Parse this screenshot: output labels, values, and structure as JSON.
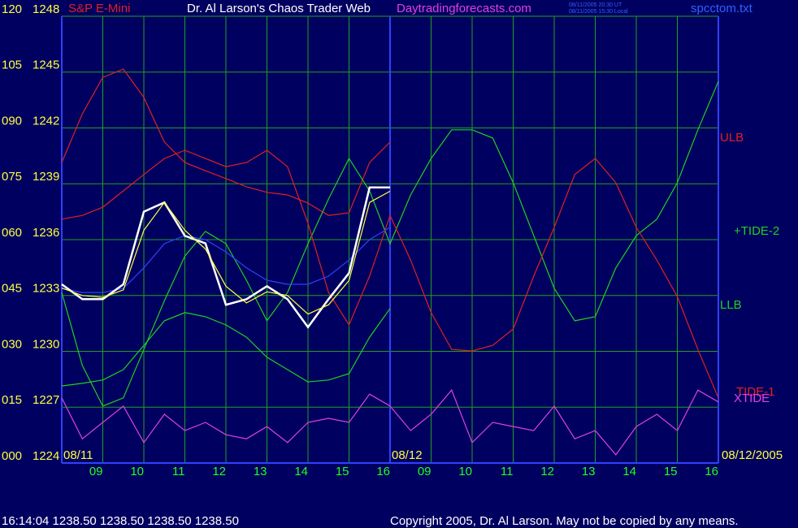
{
  "chart_data": {
    "type": "line",
    "title": "Dr. Al Larson's Chaos Trader Web",
    "site": "Daytradingforecasts.com",
    "instrument": "S&P E-Mini",
    "file": "spcctom.txt",
    "stamp_ut": "08/11/2005 20:30 UT",
    "stamp_local": "08/11/2005 15:30 Local",
    "dates": [
      "08/11",
      "08/12",
      "08/12/2005"
    ],
    "footer_quote": "16:14:04  1238.50 1238.50 1238.50 1238.50",
    "copyright": "Copyright 2005, Dr. Al Larson. May not be copied by any means.",
    "grid": true,
    "x": [
      0,
      0.5,
      1,
      1.5,
      2,
      2.5,
      3,
      3.5,
      4,
      4.5,
      5,
      5.5,
      6,
      6.5,
      7,
      7.5,
      8,
      8.5,
      9,
      9.5,
      10,
      10.5,
      11,
      11.5,
      12,
      12.5,
      13,
      13.5,
      14,
      14.5,
      15,
      15.5,
      16
    ],
    "xlim": [
      0,
      16
    ],
    "xticks": [
      {
        "value": 1,
        "label": "09"
      },
      {
        "value": 2,
        "label": "10"
      },
      {
        "value": 3,
        "label": "11"
      },
      {
        "value": 4,
        "label": "12"
      },
      {
        "value": 5,
        "label": "13"
      },
      {
        "value": 6,
        "label": "14"
      },
      {
        "value": 7,
        "label": "15"
      },
      {
        "value": 8,
        "label": "16"
      },
      {
        "value": 9,
        "label": "09"
      },
      {
        "value": 10,
        "label": "10"
      },
      {
        "value": 11,
        "label": "11"
      },
      {
        "value": 12,
        "label": "12"
      },
      {
        "value": 13,
        "label": "13"
      },
      {
        "value": 14,
        "label": "14"
      },
      {
        "value": 15,
        "label": "15"
      },
      {
        "value": 16,
        "label": "16"
      }
    ],
    "ylim": [
      0,
      120
    ],
    "yticks": [
      {
        "value": 0,
        "label": "000"
      },
      {
        "value": 15,
        "label": "015"
      },
      {
        "value": 30,
        "label": "030"
      },
      {
        "value": 45,
        "label": "045"
      },
      {
        "value": 60,
        "label": "060"
      },
      {
        "value": 75,
        "label": "075"
      },
      {
        "value": 90,
        "label": "090"
      },
      105,
      120
    ],
    "y2lim": [
      1224,
      1248
    ],
    "y2ticks": [
      1224,
      1227,
      1230,
      1233,
      1236,
      1239,
      1242,
      1245,
      1248
    ],
    "series": [
      {
        "name": "ULB",
        "color": "#e02020",
        "values": [
          80.7,
          93.8,
          103.6,
          105.8,
          98.2,
          86.2,
          80.7,
          78.5,
          76.4,
          74.2,
          72.7,
          72,
          69.8,
          66.5,
          67.2,
          80.7,
          86.2,
          null,
          null,
          null,
          null,
          null,
          null,
          null,
          null,
          null,
          null,
          null,
          null,
          null,
          null,
          null,
          null
        ]
      },
      {
        "name": "+TIDE-2",
        "color": "#20d020",
        "values": [
          45.8,
          26.2,
          15.3,
          17.5,
          30.5,
          43.6,
          55.6,
          62.2,
          58.9,
          49.1,
          38.2,
          45.8,
          58.9,
          70.9,
          81.8,
          73.1,
          58.9,
          72,
          81.8,
          89.5,
          89.5,
          87.3,
          75.3,
          61.1,
          46.9,
          38.2,
          39.3,
          52.4,
          61.1,
          65.5,
          75.3,
          89.5,
          102.5
        ]
      },
      {
        "name": "LLB",
        "color": "#20d020",
        "values": [
          20.7,
          21.4,
          22.3,
          25.1,
          31.6,
          38.2,
          40.4,
          39.3,
          37.1,
          33.8,
          28.4,
          25.1,
          21.8,
          22.3,
          24,
          33.8,
          41.5,
          null,
          null,
          null,
          null,
          null,
          null,
          null,
          null,
          null,
          null,
          null,
          null,
          null,
          null,
          null,
          null
        ]
      },
      {
        "name": "TIDE-1",
        "color": "#e02020",
        "values": [
          65.5,
          66.5,
          68.7,
          73.1,
          77.5,
          81.8,
          84,
          81.8,
          79.6,
          80.7,
          84,
          79.6,
          64.4,
          45.8,
          37.1,
          50.2,
          66.5,
          54.5,
          40.4,
          30.5,
          30.1,
          31.6,
          36,
          50.2,
          63.3,
          77.5,
          81.8,
          75.3,
          63.3,
          54.5,
          44.7,
          30.5,
          17.5
        ]
      },
      {
        "name": "XTIDE",
        "color": "#e040e0",
        "values": [
          17.5,
          6.5,
          10.9,
          15.3,
          5.5,
          13.1,
          8.7,
          10.9,
          7.6,
          6.5,
          9.8,
          5.5,
          10.9,
          12,
          10.9,
          18.5,
          15.3,
          8.7,
          13.1,
          19.6,
          5.5,
          10.9,
          9.8,
          8.7,
          15.3,
          6.5,
          8.7,
          2.2,
          9.8,
          13.1,
          8.7,
          19.6,
          16.4
        ]
      },
      {
        "color": "#3040ff",
        "values": [
          46.9,
          45.8,
          45.8,
          46.9,
          52.4,
          58.9,
          61.1,
          60,
          56.7,
          52.4,
          49.1,
          48,
          48,
          50.2,
          54.5,
          60,
          63.3,
          null,
          null,
          null,
          null,
          null,
          null,
          null,
          null,
          null,
          null,
          null,
          null,
          null,
          null,
          null,
          null
        ]
      },
      {
        "color": "#ffffff",
        "axis": "y2",
        "values": [
          1233.6,
          1232.8,
          1232.8,
          1233.6,
          1237.5,
          1238,
          1236.2,
          1235.8,
          1232.5,
          1232.8,
          1233.5,
          1232.8,
          1231.3,
          1232.8,
          1234.2,
          1238.8,
          1238.8,
          null,
          null,
          null,
          null,
          null,
          null,
          null,
          null,
          null,
          null,
          null,
          null,
          null,
          null,
          null,
          null
        ]
      },
      {
        "color": "#ffff40",
        "axis": "y2",
        "values": [
          1233.4,
          1233,
          1232.9,
          1233.3,
          1236.5,
          1238,
          1236.5,
          1235.5,
          1233.5,
          1232.6,
          1233.2,
          1233,
          1232,
          1232.5,
          1233.8,
          1238,
          1238.6,
          null,
          null,
          null,
          null,
          null,
          null,
          null,
          null,
          null,
          null,
          null,
          null,
          null,
          null,
          null,
          null
        ]
      }
    ]
  }
}
